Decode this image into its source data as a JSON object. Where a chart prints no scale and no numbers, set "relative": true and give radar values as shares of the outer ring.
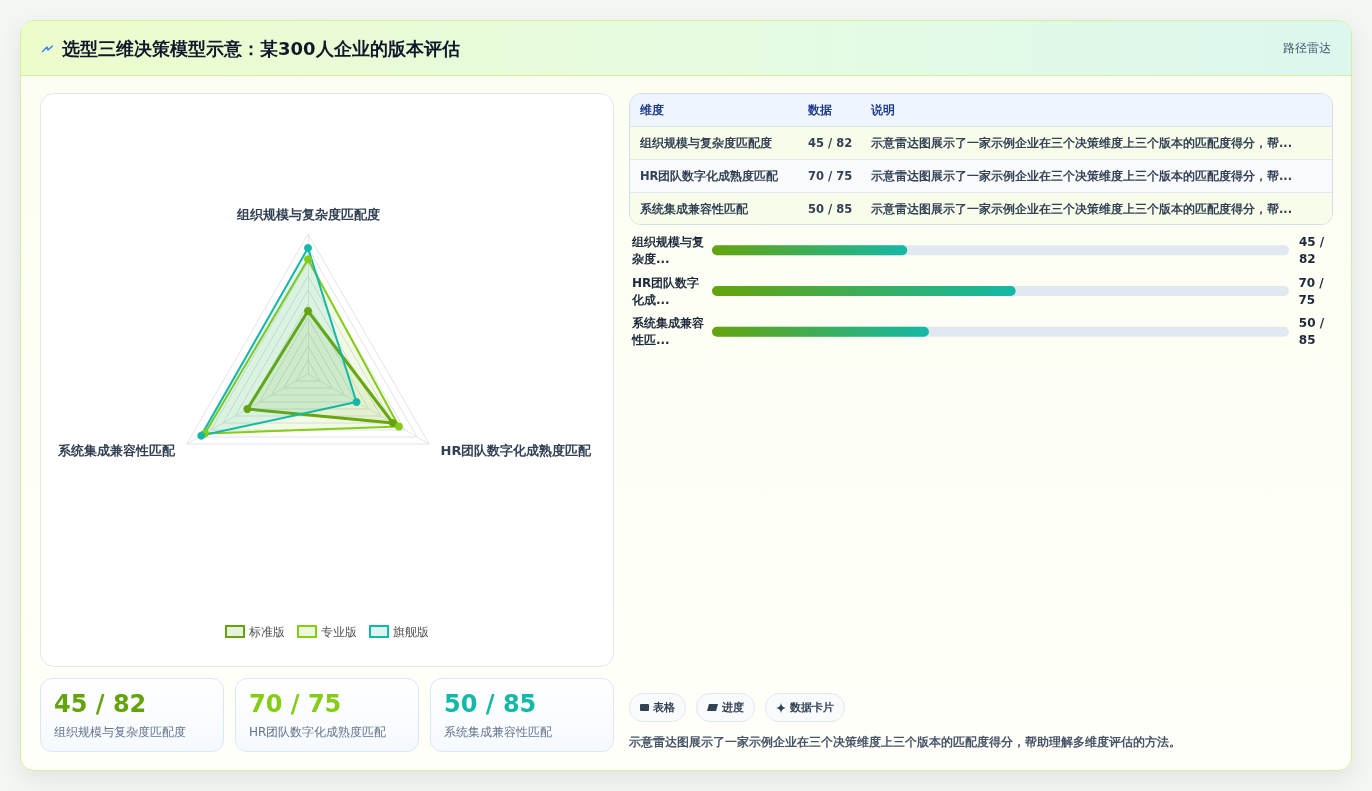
{
  "chart_data": [
    {
      "type": "radar",
      "title": "选型三维决策模型示意：某300人企业的版本评估",
      "annotations": [
        "路径雷达"
      ],
      "categories": [
        "组织规模与复杂度匹配度",
        "HR团队数字化成熟度匹配",
        "系统集成兼容性匹配"
      ],
      "relative": true,
      "grid": true,
      "legend": "bottom",
      "marker": "circle",
      "series": [
        {
          "name": "标准版",
          "color": "#65a30d",
          "values": [
            0.45,
            0.7,
            0.5
          ]
        },
        {
          "name": "专业版",
          "color": "#84cc16",
          "values": [
            0.82,
            0.75,
            0.85
          ]
        },
        {
          "name": "旗舰版",
          "color": "#14b8a6",
          "values": [
            0.9,
            0.4,
            0.88
          ]
        }
      ]
    },
    {
      "type": "other",
      "categories": [
        "维度",
        "数据",
        "说明"
      ],
      "cell_labels": [
        [
          "组织规模与复杂度匹配度",
          "45 / 82",
          "示意雷达图展示了一家示例企业在三个决策维度上三个版本的匹配度得分，帮..."
        ],
        [
          "HR团队数字化成熟度匹配",
          "70 / 75",
          "示意雷达图展示了一家示例企业在三个决策维度上三个版本的匹配度得分，帮..."
        ],
        [
          "系统集成兼容性匹配",
          "50 / 85",
          "示意雷达图展示了一家示例企业在三个决策维度上三个版本的匹配度得分，帮..."
        ]
      ]
    },
    {
      "type": "bar",
      "orientation": "horizontal",
      "categories": [
        "组织规模与复杂度...",
        "HR团队数字化成...",
        "系统集成兼容性匹..."
      ],
      "xlim": [
        0,
        133
      ],
      "tick_labels": "y",
      "color": "#65a30d",
      "values": [
        45,
        70,
        50
      ],
      "value_labels": [
        "45 / 82",
        "70 / 75",
        "50 / 85"
      ]
    },
    {
      "type": "other",
      "categories": [
        "组织规模与复杂度匹配度",
        "HR团队数字化成熟度匹配",
        "系统集成兼容性匹配"
      ],
      "value_labels": [
        "45 / 82",
        "70 / 75",
        "50 / 85"
      ]
    },
    {
      "type": "other",
      "annotations": [
        "表格",
        "进度",
        "数据卡片",
        "示意雷达图展示了一家示例企业在三个决策维度上三个版本的匹配度得分，帮助理解多维度评估的方法。"
      ]
    }
  ]
}
